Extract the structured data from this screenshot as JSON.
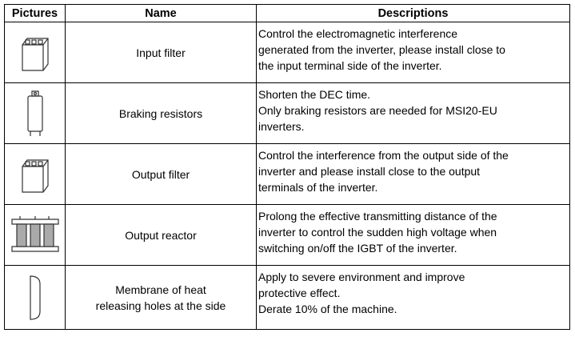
{
  "table": {
    "header": [
      "Pictures",
      "Name",
      "Descriptions"
    ],
    "rows": [
      {
        "name": [
          "Input filter"
        ],
        "description": [
          "Control the electromagnetic interference",
          "generated from the inverter, please install close to",
          "the input terminal side of the inverter."
        ]
      },
      {
        "name": [
          "Braking resistors"
        ],
        "description": [
          "Shorten the DEC time.",
          "Only braking resistors are needed for MSI20-EU",
          "inverters."
        ]
      },
      {
        "name": [
          "Output filter"
        ],
        "description": [
          "Control the interference from the output side of the",
          "inverter and please install close to the output",
          "terminals of the inverter."
        ]
      },
      {
        "name": [
          "Output reactor"
        ],
        "description": [
          "Prolong the effective transmitting distance of the",
          "inverter to control the sudden high voltage when",
          "switching on/off the IGBT of the inverter."
        ]
      },
      {
        "name": [
          "Membrane of heat",
          "releasing holes at the side"
        ],
        "description": [
          "Apply to severe environment and improve",
          "protective effect.",
          "Derate 10% of the machine."
        ]
      }
    ]
  }
}
